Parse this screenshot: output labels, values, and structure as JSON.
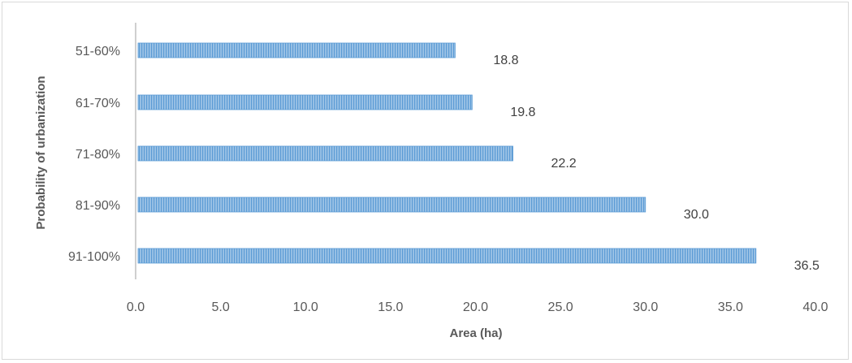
{
  "chart_data": {
    "type": "bar",
    "orientation": "horizontal",
    "title": "",
    "xlabel": "Area (ha)",
    "ylabel": "Probability of urbanization",
    "categories": [
      "51-60%",
      "61-70%",
      "71-80%",
      "81-90%",
      "91-100%"
    ],
    "values": [
      18.8,
      19.8,
      22.2,
      30.0,
      36.5
    ],
    "data_labels": [
      "18.8",
      "19.8",
      "22.2",
      "30.0",
      "36.5"
    ],
    "xlim": [
      0,
      40
    ],
    "x_ticks": [
      "0.0",
      "5.0",
      "10.0",
      "15.0",
      "20.0",
      "25.0",
      "30.0",
      "35.0",
      "40.0"
    ],
    "grid": false,
    "legend": "none",
    "colors": {
      "bar_fill": "#9dc3e6",
      "bar_stripe": "#5b9bd5",
      "axis": "#bfbfbf"
    }
  }
}
